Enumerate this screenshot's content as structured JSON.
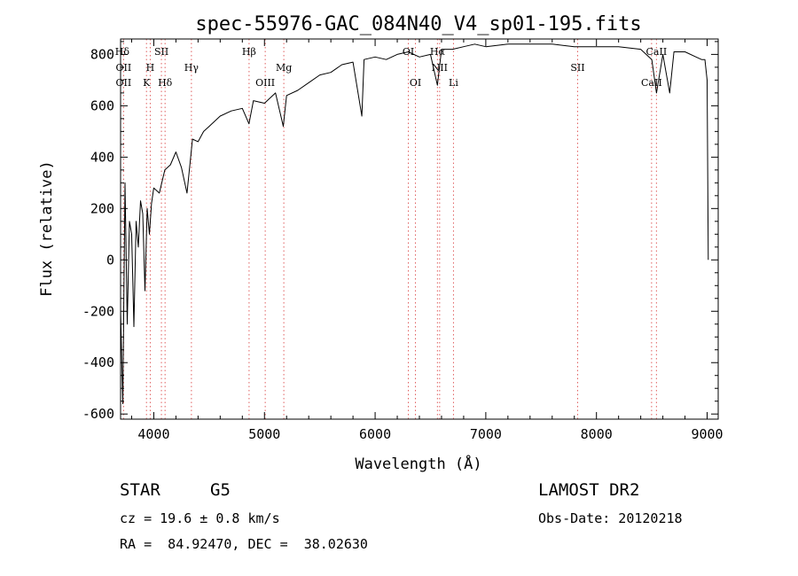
{
  "chart_data": {
    "type": "line",
    "title": "spec-55976-GAC_084N40_V4_sp01-195.fits",
    "xlabel": "Wavelength (Å)",
    "ylabel": "Flux (relative)",
    "xlim": [
      3700,
      9100
    ],
    "ylim": [
      -620,
      860
    ],
    "x_ticks": [
      4000,
      5000,
      6000,
      7000,
      8000,
      9000
    ],
    "y_ticks": [
      -600,
      -400,
      -200,
      0,
      200,
      400,
      600,
      800
    ],
    "grid": false,
    "series": [
      {
        "x": [
          3700,
          3720,
          3740,
          3760,
          3780,
          3800,
          3820,
          3840,
          3860,
          3880,
          3900,
          3920,
          3940,
          3960,
          3980,
          4000,
          4050,
          4100,
          4150,
          4200,
          4250,
          4300,
          4350,
          4400,
          4450,
          4500,
          4600,
          4700,
          4800,
          4860,
          4900,
          5000,
          5100,
          5170,
          5200,
          5300,
          5400,
          5500,
          5600,
          5700,
          5800,
          5880,
          5900,
          6000,
          6100,
          6200,
          6300,
          6400,
          6500,
          6563,
          6600,
          6700,
          6800,
          6900,
          7000,
          7200,
          7400,
          7600,
          7800,
          8000,
          8200,
          8400,
          8500,
          8542,
          8600,
          8662,
          8700,
          8800,
          8900,
          8950,
          8980,
          9000,
          9010
        ],
        "y": [
          -200,
          -560,
          300,
          -250,
          150,
          100,
          -260,
          150,
          50,
          230,
          180,
          -120,
          200,
          100,
          220,
          280,
          260,
          350,
          370,
          420,
          360,
          260,
          470,
          460,
          500,
          520,
          560,
          580,
          590,
          530,
          620,
          610,
          650,
          520,
          640,
          660,
          690,
          720,
          730,
          760,
          770,
          560,
          780,
          790,
          780,
          800,
          810,
          790,
          800,
          680,
          820,
          820,
          830,
          840,
          830,
          840,
          840,
          840,
          830,
          830,
          830,
          820,
          780,
          650,
          800,
          650,
          810,
          810,
          790,
          780,
          780,
          700,
          0
        ]
      }
    ],
    "line_markers": [
      {
        "label": "Hδ",
        "x": 3715,
        "row": 0
      },
      {
        "label": "OII",
        "x": 3727,
        "row": 1
      },
      {
        "label": "OII",
        "x": 3727,
        "row": 2
      },
      {
        "label": "SII",
        "x": 4069,
        "row": 0
      },
      {
        "label": "H",
        "x": 3968,
        "row": 1
      },
      {
        "label": "K",
        "x": 3934,
        "row": 2
      },
      {
        "label": "Hδ",
        "x": 4102,
        "row": 2
      },
      {
        "label": "Hγ",
        "x": 4340,
        "row": 1
      },
      {
        "label": "Hβ",
        "x": 4861,
        "row": 0
      },
      {
        "label": "Mg",
        "x": 5175,
        "row": 1
      },
      {
        "label": "OIII",
        "x": 5007,
        "row": 2
      },
      {
        "label": "OI",
        "x": 6300,
        "row": 0
      },
      {
        "label": "OI",
        "x": 6364,
        "row": 2
      },
      {
        "label": "Hα",
        "x": 6563,
        "row": 0
      },
      {
        "label": "NII",
        "x": 6583,
        "row": 1
      },
      {
        "label": "Li",
        "x": 6708,
        "row": 2
      },
      {
        "label": "SII",
        "x": 7830,
        "row": 1
      },
      {
        "label": "CaII",
        "x": 8542,
        "row": 0
      },
      {
        "label": "CaII",
        "x": 8498,
        "row": 2
      }
    ],
    "marker_lines_x": [
      3727,
      3934,
      3968,
      4069,
      4102,
      4340,
      4861,
      5007,
      5175,
      6300,
      6364,
      6563,
      6583,
      6708,
      7830,
      8498,
      8542
    ]
  },
  "info": {
    "object_class": "STAR",
    "subclass": "G5",
    "survey": "LAMOST DR2",
    "cz": "cz = 19.6 ± 0.8 km/s",
    "obs_date": "Obs-Date: 20120218",
    "coords": "RA =  84.92470, DEC =  38.02630"
  },
  "colors": {
    "line": "#000000",
    "marker": "#e06060"
  }
}
